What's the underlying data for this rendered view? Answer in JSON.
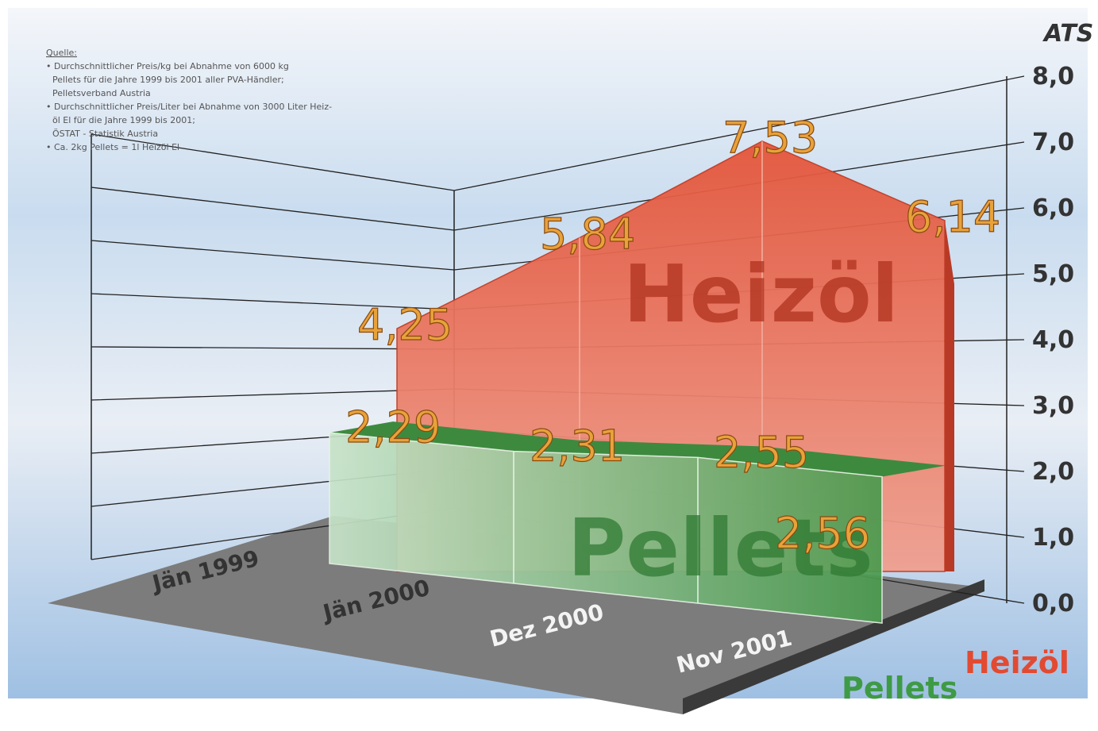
{
  "chart_data": {
    "type": "area3d",
    "y_label": "ATS",
    "notes": [
      "Quelle:",
      "• Durchschnittlicher Preis/kg bei Abnahme von 6000 kg",
      "Pellets für die Jahre 1999 bis 2001 aller PVA-Händler;",
      "Pelletsverband Austria",
      "• Durchschnittlicher Preis/Liter bei Abnahme von 3000 Liter Heiz-",
      "öl El für die Jahre 1999 bis 2001;",
      "ÖSTAT - Statistik Austria",
      "• Ca. 2kg Pellets = 1l Heizöl El"
    ],
    "categories": [
      "Jän 1999",
      "Jän 2000",
      "Dez 2000",
      "Nov 2001"
    ],
    "series": [
      {
        "name": "Heizöl",
        "color": "#e24a32",
        "values": [
          4.25,
          5.84,
          7.53,
          6.14
        ],
        "value_labels": [
          "4,25",
          "5,84",
          "7,53",
          "6,14"
        ]
      },
      {
        "name": "Pellets",
        "color": "#3f9a45",
        "values": [
          2.29,
          2.31,
          2.55,
          2.56
        ],
        "value_labels": [
          "2,29",
          "2,31",
          "2,55",
          "2,56"
        ]
      }
    ],
    "ylim": [
      0,
      8
    ],
    "yticks": [
      {
        "value": 0,
        "label": "0,0"
      },
      {
        "value": 1,
        "label": "1,0"
      },
      {
        "value": 2,
        "label": "2,0"
      },
      {
        "value": 3,
        "label": "3,0"
      },
      {
        "value": 4,
        "label": "4,0"
      },
      {
        "value": 5,
        "label": "5,0"
      },
      {
        "value": 6,
        "label": "6,0"
      },
      {
        "value": 7,
        "label": "7,0"
      },
      {
        "value": 8,
        "label": "8,0"
      }
    ],
    "grid": true
  }
}
